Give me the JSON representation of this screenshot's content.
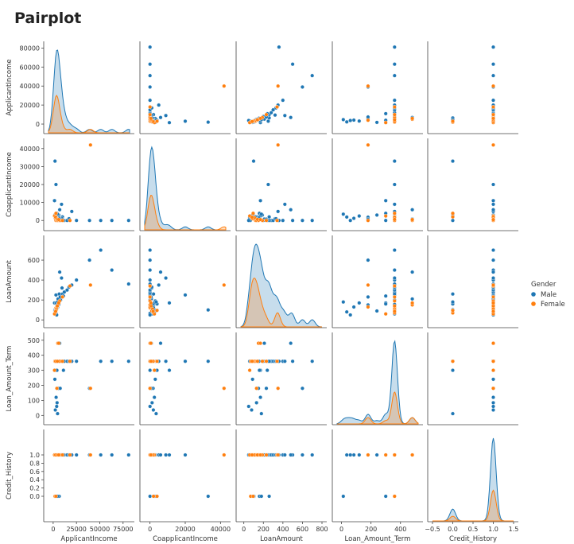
{
  "page": {
    "title": "Pairplot"
  },
  "chart_data": {
    "type": "scatter",
    "kind": "pairplot",
    "variables": [
      "ApplicantIncome",
      "CoapplicantIncome",
      "LoanAmount",
      "Loan_Amount_Term",
      "Credit_History"
    ],
    "hue": "Gender",
    "legend": {
      "title": "Gender",
      "placement": "right",
      "entries": [
        "Male",
        "Female"
      ]
    },
    "colors": {
      "Male": "#1f77b4",
      "Female": "#ff7f0e"
    },
    "axes": {
      "ApplicantIncome": {
        "range": [
          -5000,
          82000
        ],
        "ticks": [
          0,
          20000,
          40000,
          60000,
          80000
        ],
        "xtick_labels": [
          "0",
          "25000",
          "50000",
          "75000"
        ],
        "xtick_values": [
          0,
          25000,
          50000,
          75000
        ]
      },
      "CoapplicantIncome": {
        "range": [
          -3000,
          43000
        ],
        "ticks": [
          0,
          10000,
          20000,
          30000,
          40000
        ],
        "xtick_labels": [
          "0",
          "20000",
          "40000"
        ],
        "xtick_values": [
          0,
          20000,
          40000
        ]
      },
      "LoanAmount": {
        "range": [
          -30,
          800
        ],
        "ticks": [
          0,
          200,
          400,
          600
        ],
        "xtick_labels": [
          "0",
          "200",
          "400",
          "600",
          "800"
        ],
        "xtick_values": [
          0,
          200,
          400,
          600,
          800
        ]
      },
      "Loan_Amount_Term": {
        "range": [
          -30,
          520
        ],
        "ticks": [
          0,
          100,
          200,
          300,
          400,
          500
        ],
        "xtick_labels": [
          "0",
          "200",
          "400"
        ],
        "xtick_values": [
          0,
          200,
          400
        ]
      },
      "Credit_History": {
        "range": [
          -0.5,
          1.5
        ],
        "ticks": [
          0.0,
          0.2,
          0.4,
          0.6,
          0.8,
          1.0
        ],
        "xtick_labels": [
          "−0.5",
          "0.0",
          "0.5",
          "1.0",
          "1.5"
        ],
        "xtick_values": [
          -0.5,
          0,
          0.5,
          1,
          1.5
        ],
        "ytick_labels": [
          "0.0",
          "0.2",
          "0.4",
          "0.6",
          "0.8",
          "1.0"
        ]
      }
    },
    "series": [
      {
        "name": "Male",
        "points": [
          [
            2500,
            1500,
            110,
            360,
            1
          ],
          [
            3000,
            0,
            66,
            360,
            1
          ],
          [
            4000,
            2000,
            140,
            360,
            1
          ],
          [
            4500,
            1000,
            120,
            360,
            1
          ],
          [
            5000,
            0,
            130,
            360,
            1
          ],
          [
            6000,
            3000,
            190,
            360,
            1
          ],
          [
            3500,
            2500,
            105,
            360,
            0
          ],
          [
            2800,
            2200,
            100,
            360,
            1
          ],
          [
            5500,
            1800,
            150,
            180,
            1
          ],
          [
            8000,
            0,
            200,
            360,
            1
          ],
          [
            10000,
            2000,
            260,
            360,
            1
          ],
          [
            12000,
            0,
            280,
            360,
            1
          ],
          [
            15000,
            0,
            300,
            360,
            1
          ],
          [
            20000,
            5000,
            350,
            360,
            1
          ],
          [
            25000,
            0,
            400,
            360,
            1
          ],
          [
            39000,
            0,
            600,
            180,
            1
          ],
          [
            51000,
            0,
            700,
            360,
            1
          ],
          [
            63000,
            0,
            500,
            360,
            1
          ],
          [
            81000,
            0,
            360,
            360,
            1
          ],
          [
            3000,
            20000,
            250,
            360,
            1
          ],
          [
            2000,
            33000,
            100,
            360,
            0
          ],
          [
            1500,
            11000,
            170,
            300,
            1
          ],
          [
            9000,
            9000,
            420,
            360,
            1
          ],
          [
            7000,
            6000,
            480,
            480,
            1
          ],
          [
            4000,
            4000,
            160,
            300,
            0
          ],
          [
            2000,
            1500,
            60,
            360,
            1
          ],
          [
            1800,
            3000,
            90,
            240,
            1
          ],
          [
            3200,
            2500,
            170,
            120,
            1
          ],
          [
            6500,
            0,
            260,
            360,
            0
          ],
          [
            9500,
            1000,
            320,
            360,
            1
          ],
          [
            4200,
            1200,
            130,
            84,
            1
          ],
          [
            3800,
            0,
            50,
            60,
            1
          ],
          [
            2300,
            1900,
            80,
            36,
            1
          ],
          [
            5200,
            800,
            210,
            480,
            1
          ],
          [
            7500,
            700,
            230,
            180,
            1
          ],
          [
            11000,
            0,
            240,
            300,
            1
          ],
          [
            17000,
            1000,
            330,
            360,
            1
          ],
          [
            4700,
            3500,
            180,
            12,
            0
          ],
          [
            6100,
            1400,
            155,
            360,
            1
          ],
          [
            3300,
            2000,
            120,
            360,
            1
          ]
        ]
      },
      {
        "name": "Female",
        "points": [
          [
            2500,
            1000,
            90,
            360,
            1
          ],
          [
            3000,
            0,
            120,
            360,
            1
          ],
          [
            2000,
            2000,
            70,
            360,
            0
          ],
          [
            4000,
            0,
            130,
            180,
            1
          ],
          [
            3500,
            1500,
            110,
            360,
            1
          ],
          [
            5000,
            0,
            150,
            480,
            1
          ],
          [
            1500,
            2500,
            60,
            300,
            1
          ],
          [
            7000,
            0,
            190,
            360,
            1
          ],
          [
            10000,
            0,
            230,
            360,
            1
          ],
          [
            18000,
            0,
            340,
            360,
            1
          ],
          [
            40000,
            42000,
            350,
            180,
            1
          ],
          [
            3000,
            4000,
            95,
            360,
            0
          ],
          [
            2700,
            1800,
            85,
            360,
            1
          ],
          [
            4500,
            600,
            140,
            360,
            1
          ],
          [
            6000,
            500,
            170,
            480,
            1
          ]
        ]
      }
    ]
  }
}
